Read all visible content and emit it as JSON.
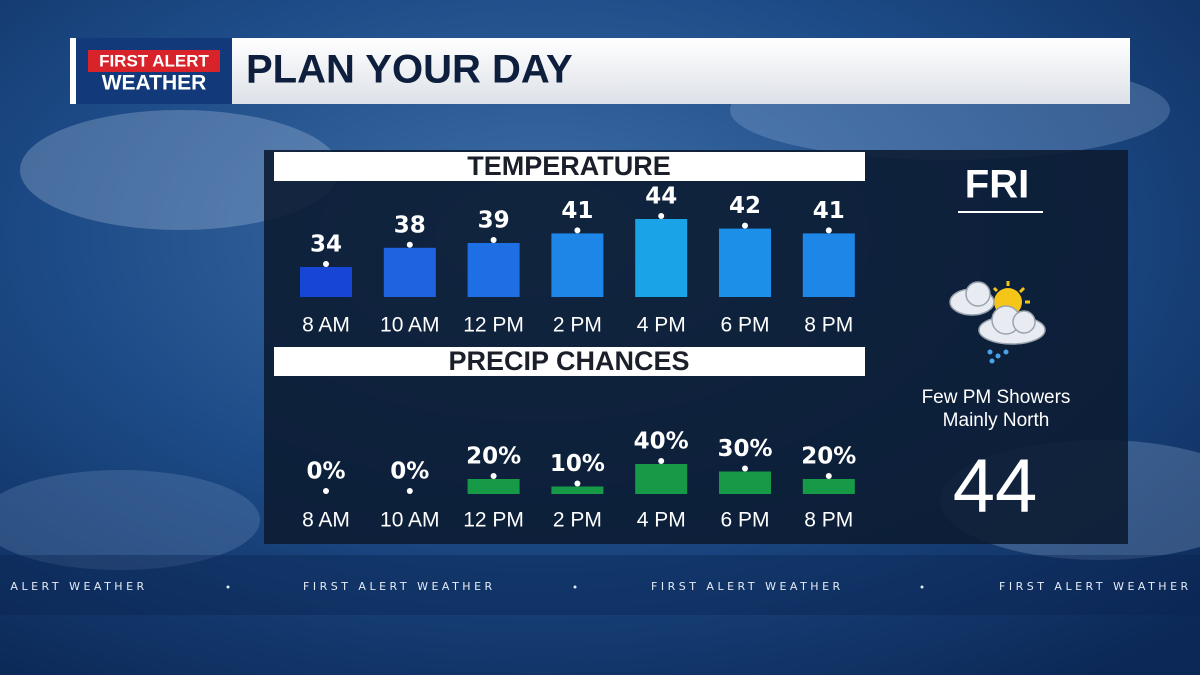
{
  "header": {
    "logo_top": "FIRST ALERT",
    "logo_bottom": "WEATHER",
    "title": "PLAN YOUR DAY"
  },
  "chart_data": [
    {
      "type": "bar",
      "title": "TEMPERATURE",
      "categories": [
        "8 AM",
        "10 AM",
        "12 PM",
        "2 PM",
        "4 PM",
        "6 PM",
        "8 PM"
      ],
      "values": [
        34,
        38,
        39,
        41,
        44,
        42,
        41
      ],
      "colors": [
        "#1746d6",
        "#1f63e0",
        "#1f6fe4",
        "#1e86e6",
        "#1aa3e6",
        "#1c8fe8",
        "#1e86e6"
      ]
    },
    {
      "type": "bar",
      "title": "PRECIP CHANCES",
      "categories": [
        "8 AM",
        "10 AM",
        "12 PM",
        "2 PM",
        "4 PM",
        "6 PM",
        "8 PM"
      ],
      "values": [
        0,
        0,
        20,
        10,
        40,
        30,
        20
      ],
      "value_labels": [
        "0%",
        "0%",
        "20%",
        "10%",
        "40%",
        "30%",
        "20%"
      ],
      "color": "#169a47"
    }
  ],
  "side": {
    "day": "FRI",
    "line1": "Few PM Showers",
    "line2": "Mainly North",
    "high": "44"
  },
  "ticker": "FIRST ALERT WEATHER"
}
